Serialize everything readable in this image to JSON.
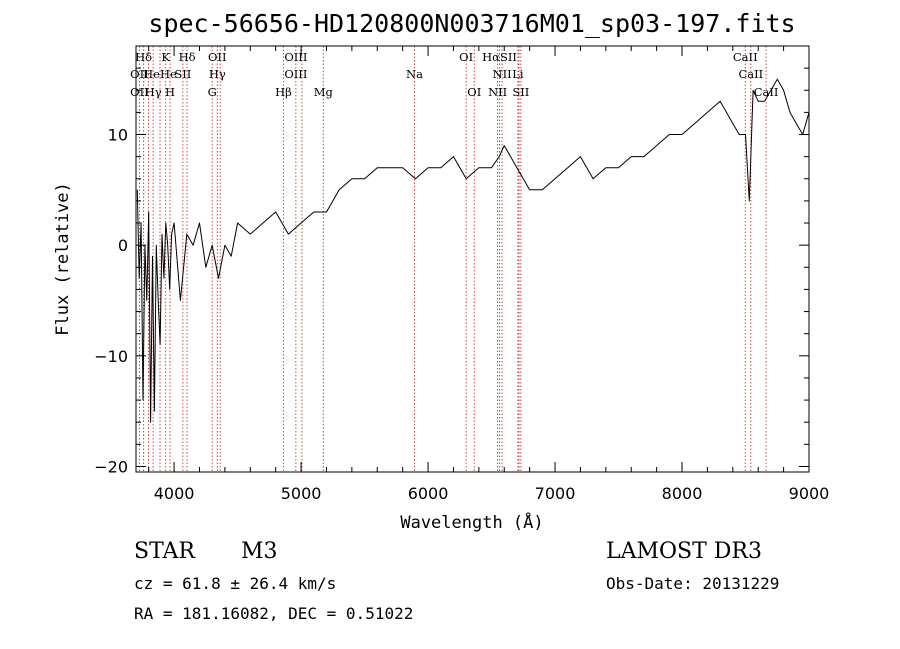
{
  "chart_data": {
    "type": "line",
    "title": "spec-56656-HD120800N003716M01_sp03-197.fits",
    "xlabel": "Wavelength (Å)",
    "ylabel": "Flux (relative)",
    "xlim": [
      3700,
      9000
    ],
    "ylim": [
      -20.5,
      18
    ],
    "x_ticks": [
      4000,
      5000,
      6000,
      7000,
      8000,
      9000
    ],
    "y_ticks": [
      -20,
      -10,
      0,
      10
    ],
    "grid": false,
    "line_color": "#000000",
    "marker_color": "#c0392b",
    "series": [
      {
        "x": [
          3710,
          3725,
          3740,
          3755,
          3770,
          3785,
          3800,
          3815,
          3830,
          3845,
          3860,
          3875,
          3890,
          3905,
          3920,
          3935,
          3950,
          3965,
          3980,
          4000,
          4050,
          4100,
          4150,
          4200,
          4250,
          4300,
          4350,
          4400,
          4450,
          4500,
          4600,
          4700,
          4800,
          4900,
          5000,
          5100,
          5200,
          5300,
          5400,
          5500,
          5600,
          5700,
          5800,
          5900,
          6000,
          6100,
          6200,
          6300,
          6400,
          6500,
          6560,
          6600,
          6650,
          6700,
          6750,
          6800,
          6900,
          7000,
          7100,
          7200,
          7300,
          7400,
          7500,
          7600,
          7700,
          7800,
          7900,
          8000,
          8100,
          8200,
          8300,
          8350,
          8400,
          8450,
          8500,
          8530,
          8560,
          8600,
          8650,
          8700,
          8750,
          8800,
          8850,
          8900,
          8950,
          9000
        ],
        "y": [
          5,
          -3,
          2,
          -14,
          0,
          -5,
          3,
          -16,
          -1,
          -15,
          0,
          -5,
          -9,
          1,
          -3,
          2,
          0,
          -4,
          1,
          2,
          -5,
          1,
          0,
          2,
          -2,
          0,
          -3,
          0,
          -1,
          2,
          1,
          2,
          3,
          1,
          2,
          3,
          3,
          5,
          6,
          6,
          7,
          7,
          7,
          6,
          7,
          7,
          8,
          6,
          7,
          7,
          8,
          9,
          8,
          7,
          6,
          5,
          5,
          6,
          7,
          8,
          6,
          7,
          7,
          8,
          8,
          9,
          10,
          10,
          11,
          12,
          13,
          12,
          11,
          10,
          10,
          4,
          14,
          13,
          13,
          14,
          15,
          14,
          12,
          11,
          10,
          12
        ]
      }
    ],
    "spectral_lines": [
      {
        "name": "Hδ",
        "wl": 3760,
        "row": 1
      },
      {
        "name": "K",
        "wl": 3934,
        "row": 1
      },
      {
        "name": "Hδ",
        "wl": 4102,
        "row": 1
      },
      {
        "name": "OII",
        "wl": 4340,
        "row": 1
      },
      {
        "name": "OIII",
        "wl": 4959,
        "row": 1
      },
      {
        "name": "OI",
        "wl": 6300,
        "row": 1
      },
      {
        "name": "HαSII",
        "wl": 6563,
        "row": 1
      },
      {
        "name": "CaII",
        "wl": 8498,
        "row": 1
      },
      {
        "name": "OII",
        "wl": 3727,
        "row": 2
      },
      {
        "name": "HeHe",
        "wl": 3889,
        "row": 2
      },
      {
        "name": "SII",
        "wl": 4069,
        "row": 2
      },
      {
        "name": "Hγ",
        "wl": 4340,
        "row": 2
      },
      {
        "name": "OIII",
        "wl": 4959,
        "row": 2
      },
      {
        "name": "Na",
        "wl": 5893,
        "row": 2
      },
      {
        "name": "NII",
        "wl": 6583,
        "row": 2
      },
      {
        "name": "Li",
        "wl": 6708,
        "row": 2
      },
      {
        "name": "CaII",
        "wl": 8542,
        "row": 2
      },
      {
        "name": "OII",
        "wl": 3727,
        "row": 3
      },
      {
        "name": "Hγ",
        "wl": 3835,
        "row": 3
      },
      {
        "name": "H",
        "wl": 3968,
        "row": 3
      },
      {
        "name": "G",
        "wl": 4300,
        "row": 3
      },
      {
        "name": "Hβ",
        "wl": 4861,
        "row": 3
      },
      {
        "name": "Mg",
        "wl": 5175,
        "row": 3
      },
      {
        "name": "OI",
        "wl": 6364,
        "row": 3
      },
      {
        "name": "NII",
        "wl": 6548,
        "row": 3
      },
      {
        "name": "SII",
        "wl": 6731,
        "row": 3
      },
      {
        "name": "CaII",
        "wl": 8662,
        "row": 3
      }
    ],
    "marker_wavelengths": [
      3727,
      3760,
      3798,
      3835,
      3889,
      3934,
      3968,
      4069,
      4102,
      4300,
      4340,
      4363,
      4861,
      4959,
      5007,
      5175,
      5893,
      6300,
      6364,
      6548,
      6563,
      6583,
      6708,
      6716,
      6731,
      8498,
      8542,
      8662
    ]
  },
  "info": {
    "object_type": "STAR",
    "subclass": "M3",
    "survey": "LAMOST DR3",
    "cz": "cz = 61.8 ± 26.4 km/s",
    "obs_date": "Obs-Date: 20131229",
    "radec": "RA = 181.16082, DEC =   0.51022"
  }
}
